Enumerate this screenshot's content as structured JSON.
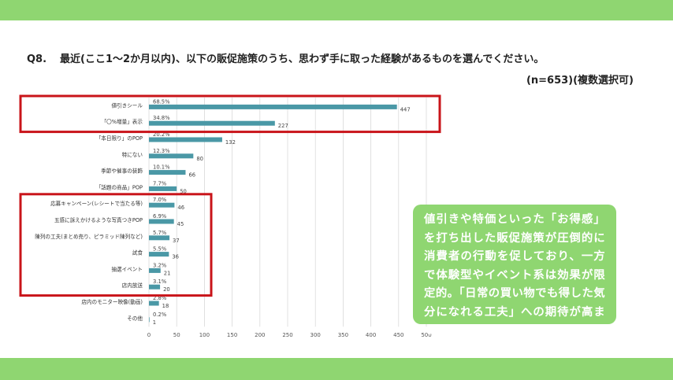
{
  "colors": {
    "band": "#8fd671",
    "bar": "#4a98a6",
    "highlight_box": "#c9141a",
    "callout_bg": "#8fd671",
    "gridline": "#d9d9d9",
    "label_text": "#333333"
  },
  "question": {
    "number": "Q8.",
    "text": "最近(ここ1〜2か月以内)、以下の販促施策のうち、思わず手に取った経験があるものを選んでください。",
    "sample": "(n=653)(複数選択可)"
  },
  "callout": {
    "text": "値引きや特価といった「お得感」を打ち出した販促施策が圧倒的に消費者の行動を促しており、一方で体験型やイベント系は効果が限定的。「日常の買い物でも得した気分になれる工夫」への期待が高まっている。"
  },
  "chart_data": {
    "type": "bar",
    "orientation": "horizontal",
    "categories": [
      "値引きシール",
      "「〇%増量」表示",
      "「本日限り」のPOP",
      "特にない",
      "季節や催事の装飾",
      "「話題の商品」POP",
      "応募キャンペーン(レシートで当たる等)",
      "五感に訴えかけるような写真つきPOP",
      "陳列の工夫(まとめ売り、ピラミッド陳列など)",
      "試食",
      "抽選イベント",
      "店内放送",
      "店内のモニター映像(動画)",
      "その他"
    ],
    "values": [
      447,
      227,
      132,
      80,
      66,
      50,
      46,
      45,
      37,
      36,
      21,
      20,
      18,
      1
    ],
    "percent_labels": [
      "68.5%",
      "34.8%",
      "20.2%",
      "12.3%",
      "10.1%",
      "7.7%",
      "7.0%",
      "6.9%",
      "5.7%",
      "5.5%",
      "3.2%",
      "3.1%",
      "2.8%",
      "0.2%"
    ],
    "xlim": [
      0,
      500
    ],
    "xticks": [
      "0",
      "50",
      "100",
      "150",
      "200",
      "250",
      "300",
      "350",
      "400",
      "450",
      "500"
    ],
    "grid": true,
    "highlight_groups": [
      [
        0,
        1
      ],
      [
        6,
        11
      ]
    ]
  }
}
